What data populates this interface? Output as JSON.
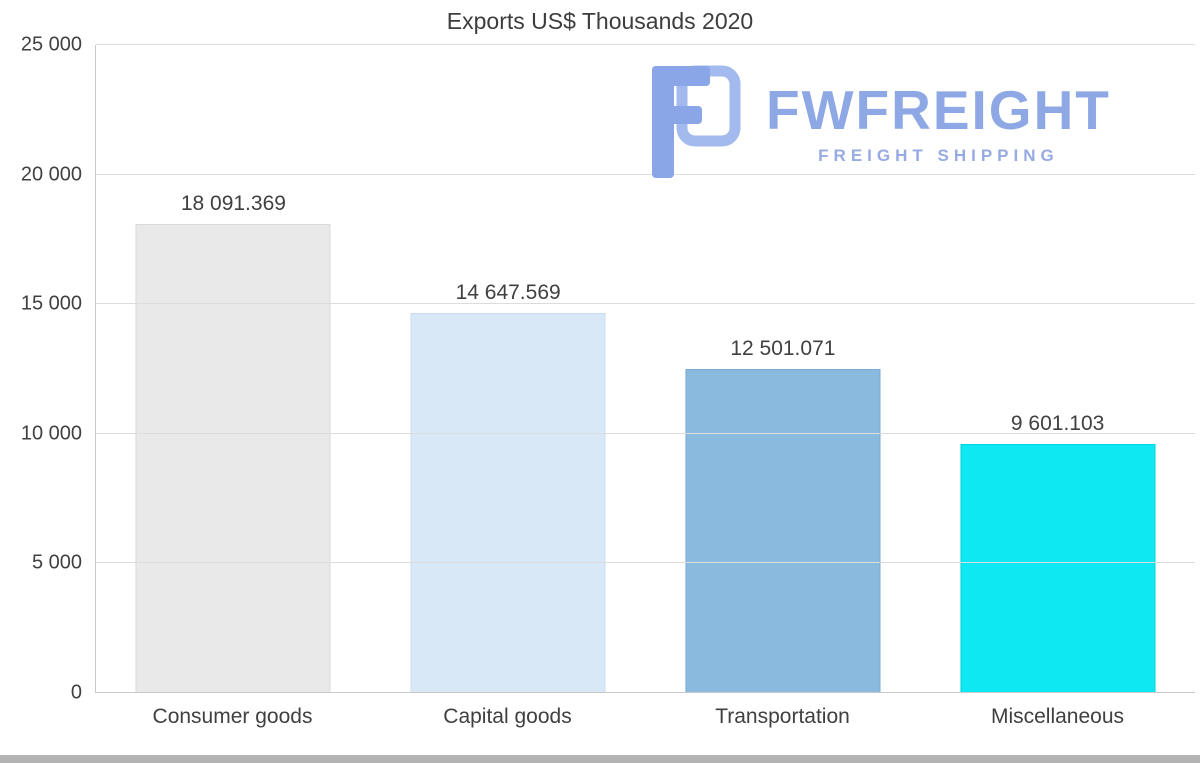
{
  "chart_data": {
    "type": "bar",
    "title": "Exports US$ Thousands 2020",
    "categories": [
      "Consumer goods",
      "Capital goods",
      "Transportation",
      "Miscellaneous"
    ],
    "values": [
      18091.369,
      14647.569,
      12501.071,
      9601.103
    ],
    "value_labels": [
      "18 091.369",
      "14 647.569",
      "12 501.071",
      "9 601.103"
    ],
    "bar_colors": [
      "#e9e9e9",
      "#d9e8f7",
      "#8abade",
      "#0de8f2"
    ],
    "bar_border_colors": [
      "#dadada",
      "#c8ddf1",
      "#79abd3",
      "#00d4de"
    ],
    "xlabel": "",
    "ylabel": "",
    "ylim": [
      0,
      25000
    ],
    "yticks": [
      {
        "value": 0,
        "label": "0"
      },
      {
        "value": 5000,
        "label": "5 000"
      },
      {
        "value": 10000,
        "label": "10 000"
      },
      {
        "value": 15000,
        "label": "15 000"
      },
      {
        "value": 20000,
        "label": "20 000"
      },
      {
        "value": 25000,
        "label": "25 000"
      }
    ],
    "grid": true,
    "legend_position": "none"
  },
  "logo": {
    "wordmark": "FWFREIGHT",
    "tagline": "FREIGHT SHIPPING",
    "wordmark_color": "#8da8e4",
    "tagline_color": "#97abe3",
    "icon_fill_color": "#8ba6e6",
    "icon_outline_color": "#a3baee"
  },
  "colors": {
    "background": "#ffffff",
    "grid": "#dcdcdc",
    "axis": "#c8c8c8",
    "text": "#404040",
    "bottom_strip": "#b3b3b3"
  }
}
